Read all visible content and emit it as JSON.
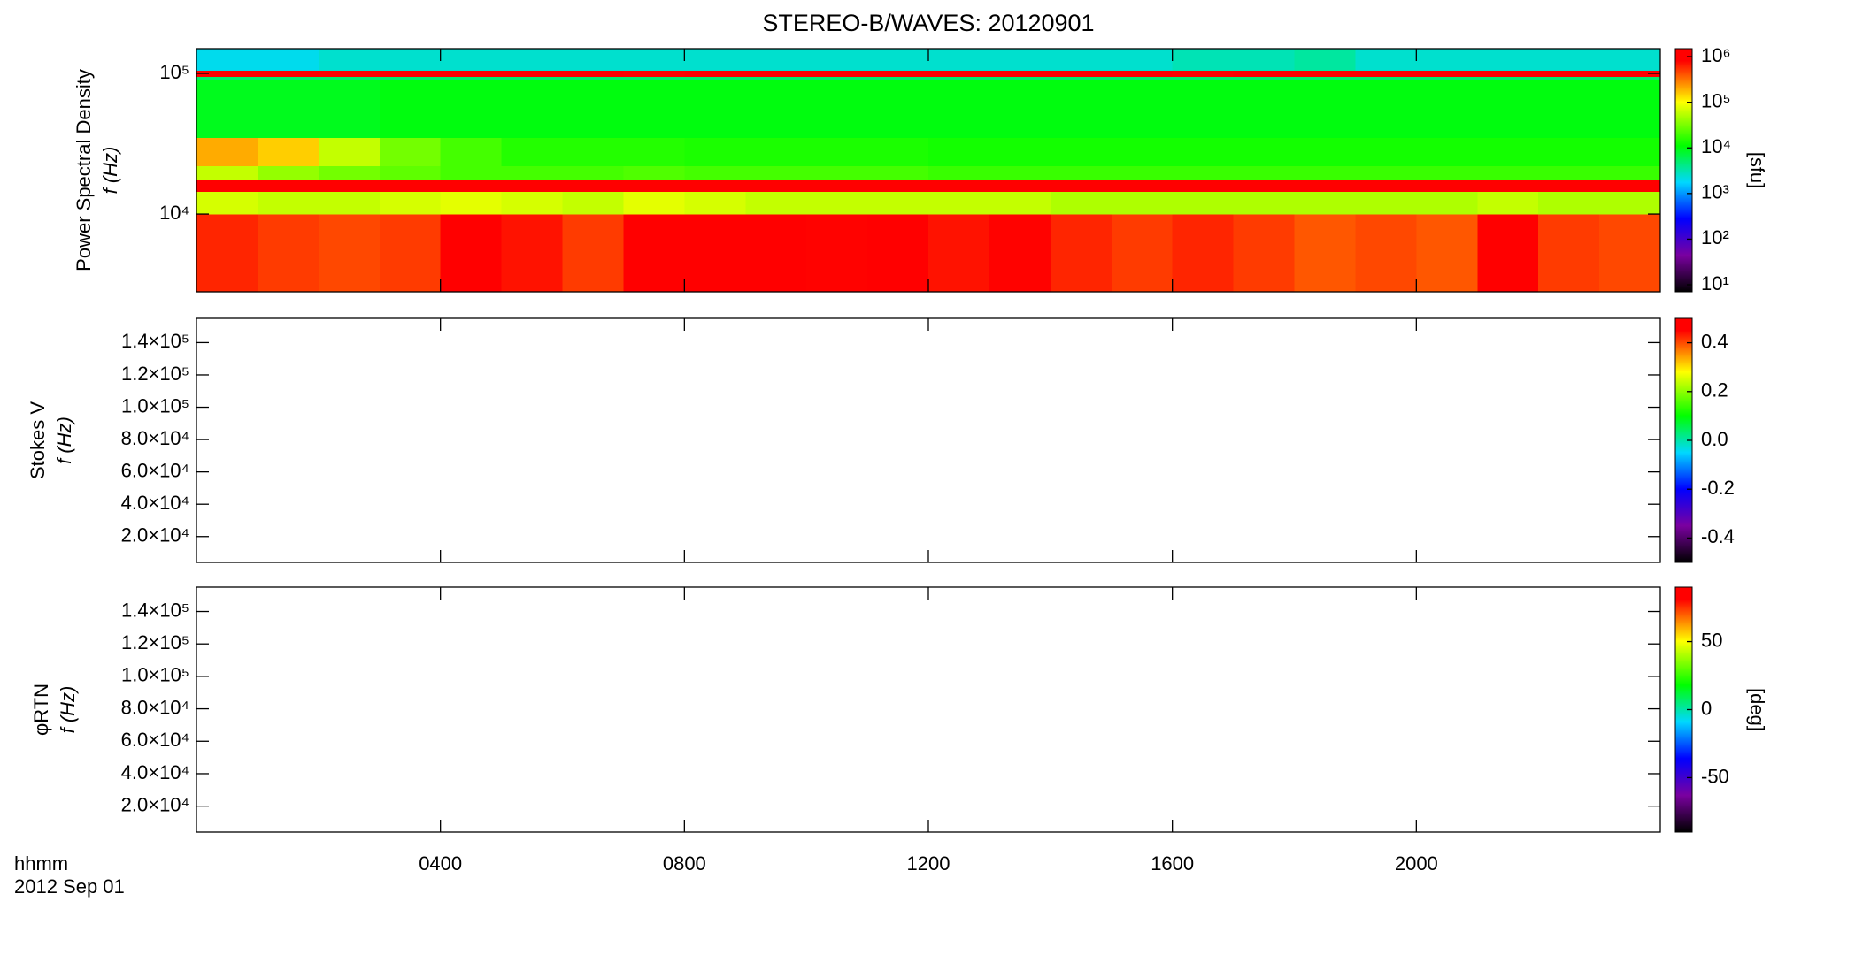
{
  "chart_data": [
    {
      "type": "heatmap",
      "title": "STEREO-B/WAVES: 20120901",
      "ylabel": [
        "Power Spectral Density",
        "f (Hz)"
      ],
      "xlim": [
        0,
        24
      ],
      "yscale": "log",
      "ylim": [
        2800,
        150000
      ],
      "yticks": [
        {
          "value": 10000,
          "label": "10⁴"
        },
        {
          "value": 100000,
          "label": "10⁵"
        }
      ],
      "x": [
        0,
        1,
        2,
        3,
        4,
        5,
        6,
        7,
        8,
        9,
        10,
        11,
        12,
        13,
        14,
        15,
        16,
        17,
        18,
        19,
        20,
        21,
        22,
        23,
        24
      ],
      "y": [
        2800,
        10000,
        14500,
        17500,
        22000,
        35000,
        90000,
        95000,
        105000,
        150000
      ],
      "z": [
        [
          600000,
          500000,
          450000,
          500000,
          1000000,
          700000,
          500000,
          1000000,
          900000,
          1000000,
          800000,
          900000,
          700000,
          800000,
          600000,
          500000,
          600000,
          500000,
          400000,
          450000,
          400000,
          1000000,
          500000,
          450000
        ],
        [
          70000,
          60000,
          60000,
          70000,
          80000,
          70000,
          60000,
          80000,
          70000,
          60000,
          60000,
          60000,
          60000,
          60000,
          50000,
          50000,
          50000,
          50000,
          50000,
          50000,
          50000,
          60000,
          50000,
          50000
        ],
        [
          1000000,
          1000000,
          1000000,
          1000000,
          1000000,
          1000000,
          1000000,
          1000000,
          1000000,
          1000000,
          1000000,
          1000000,
          1000000,
          1000000,
          1000000,
          1000000,
          1000000,
          1000000,
          1000000,
          1000000,
          1000000,
          1000000,
          1000000,
          1000000
        ],
        [
          60000,
          40000,
          30000,
          25000,
          20000,
          20000,
          20000,
          22000,
          20000,
          20000,
          20000,
          20000,
          18000,
          18000,
          18000,
          18000,
          18000,
          18000,
          18000,
          18000,
          18000,
          18000,
          18000,
          18000
        ],
        [
          200000,
          150000,
          60000,
          30000,
          20000,
          15000,
          15000,
          15000,
          14000,
          14000,
          14000,
          14000,
          13000,
          13000,
          13000,
          13000,
          13000,
          13000,
          13000,
          13000,
          13000,
          13000,
          13000,
          13000
        ],
        [
          9000,
          9000,
          9000,
          10000,
          10000,
          10000,
          10000,
          10000,
          10000,
          10000,
          10000,
          10000,
          10000,
          10000,
          10000,
          10000,
          10000,
          10000,
          10000,
          10000,
          10000,
          10000,
          10000,
          10000
        ],
        [
          5000,
          5000,
          5000,
          5000,
          5000,
          5000,
          5000,
          5000,
          5000,
          5000,
          5000,
          5000,
          5000,
          5000,
          5000,
          5000,
          5000,
          5000,
          5000,
          5000,
          5000,
          5000,
          5000,
          5000
        ],
        [
          900000,
          900000,
          800000,
          900000,
          900000,
          900000,
          900000,
          800000,
          900000,
          900000,
          900000,
          900000,
          900000,
          1000000,
          900000,
          900000,
          800000,
          900000,
          900000,
          900000,
          900000,
          900000,
          900000,
          900000
        ],
        [
          2000,
          2000,
          2500,
          2500,
          2500,
          2500,
          2500,
          2500,
          2500,
          2500,
          2500,
          2500,
          2500,
          2500,
          2500,
          2500,
          3000,
          3000,
          3500,
          2500,
          2500,
          2500,
          2500,
          2500
        ]
      ],
      "colorscale": [
        [
          0,
          "#000000"
        ],
        [
          0.15,
          "#7a00a0"
        ],
        [
          0.3,
          "#0000ff"
        ],
        [
          0.45,
          "#00d8ff"
        ],
        [
          0.6,
          "#00ff00"
        ],
        [
          0.78,
          "#ffff00"
        ],
        [
          0.95,
          "#ff0000"
        ],
        [
          1,
          "#ff0000"
        ]
      ],
      "zscale": "log",
      "zlim": [
        7,
        1500000
      ],
      "zticks": [
        {
          "value": 10,
          "label": "10¹"
        },
        {
          "value": 100,
          "label": "10²"
        },
        {
          "value": 1000,
          "label": "10³"
        },
        {
          "value": 10000,
          "label": "10⁴"
        },
        {
          "value": 100000,
          "label": "10⁵"
        },
        {
          "value": 1000000,
          "label": "10⁶"
        }
      ],
      "zlabel": "[sfu]"
    },
    {
      "type": "heatmap",
      "ylabel": [
        "Stokes V",
        "f (Hz)"
      ],
      "xlim": [
        0,
        24
      ],
      "yscale": "linear",
      "ylim": [
        4000,
        155000
      ],
      "yticks": [
        {
          "value": 20000,
          "label": "2.0×10⁴"
        },
        {
          "value": 40000,
          "label": "4.0×10⁴"
        },
        {
          "value": 60000,
          "label": "6.0×10⁴"
        },
        {
          "value": 80000,
          "label": "8.0×10⁴"
        },
        {
          "value": 100000,
          "label": "1.0×10⁵"
        },
        {
          "value": 120000,
          "label": "1.2×10⁵"
        },
        {
          "value": 140000,
          "label": "1.4×10⁵"
        }
      ],
      "colorscale": [
        [
          0,
          "#000000"
        ],
        [
          0.15,
          "#7a00a0"
        ],
        [
          0.3,
          "#0000ff"
        ],
        [
          0.45,
          "#00d8ff"
        ],
        [
          0.6,
          "#00ff00"
        ],
        [
          0.78,
          "#ffff00"
        ],
        [
          0.95,
          "#ff0000"
        ],
        [
          1,
          "#ff0000"
        ]
      ],
      "zscale": "linear",
      "zlim": [
        -0.5,
        0.5
      ],
      "zticks": [
        -0.4,
        -0.2,
        {
          "value": 0,
          "label": "0.0"
        },
        0.2,
        0.4
      ]
    },
    {
      "type": "heatmap",
      "ylabel": [
        "φRTN",
        "f (Hz)"
      ],
      "xlim": [
        0,
        24
      ],
      "yscale": "linear",
      "ylim": [
        4000,
        155000
      ],
      "yticks": [
        {
          "value": 20000,
          "label": "2.0×10⁴"
        },
        {
          "value": 40000,
          "label": "4.0×10⁴"
        },
        {
          "value": 60000,
          "label": "6.0×10⁴"
        },
        {
          "value": 80000,
          "label": "8.0×10⁴"
        },
        {
          "value": 100000,
          "label": "1.0×10⁵"
        },
        {
          "value": 120000,
          "label": "1.2×10⁵"
        },
        {
          "value": 140000,
          "label": "1.4×10⁵"
        }
      ],
      "xticks": [
        {
          "value": 4,
          "label": "0400"
        },
        {
          "value": 8,
          "label": "0800"
        },
        {
          "value": 12,
          "label": "1200"
        },
        {
          "value": 16,
          "label": "1600"
        },
        {
          "value": 20,
          "label": "2000"
        }
      ],
      "xlabel": [
        "hhmm",
        "2012 Sep 01"
      ],
      "colorscale": [
        [
          0,
          "#000000"
        ],
        [
          0.15,
          "#7a00a0"
        ],
        [
          0.3,
          "#0000ff"
        ],
        [
          0.45,
          "#00d8ff"
        ],
        [
          0.6,
          "#00ff00"
        ],
        [
          0.78,
          "#ffff00"
        ],
        [
          0.95,
          "#ff0000"
        ],
        [
          1,
          "#ff0000"
        ]
      ],
      "zscale": "linear",
      "zlim": [
        -90,
        90
      ],
      "zticks": [
        -50,
        0,
        50
      ],
      "zlabel": "[deg]"
    }
  ]
}
